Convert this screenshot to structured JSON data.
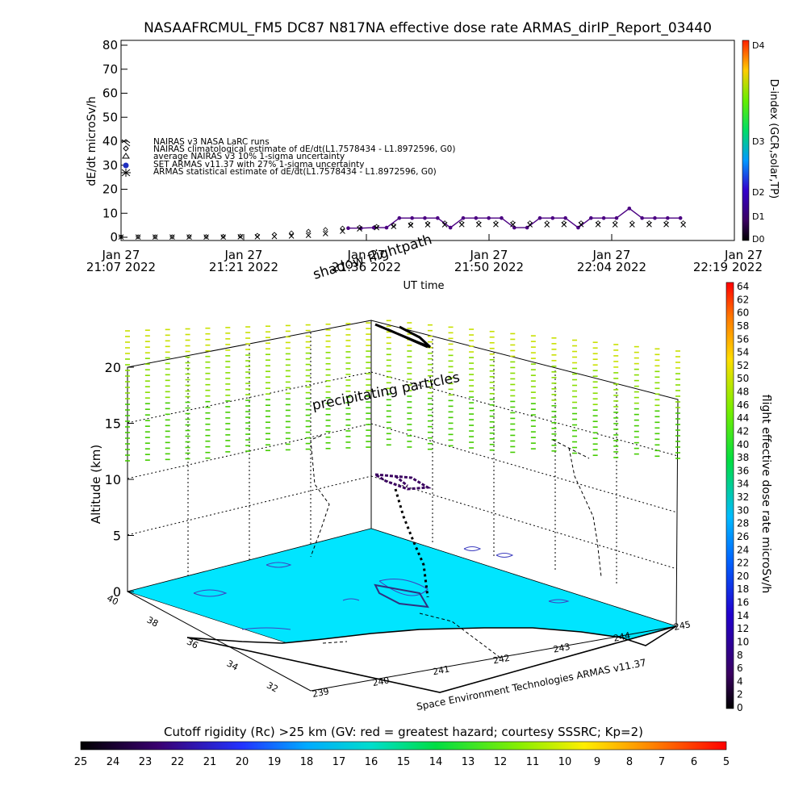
{
  "title": "NASAAFRCMUL_FM5 DC87 N817NA effective dose rate ARMAS_dirIP_Report_03440",
  "top_chart": {
    "ylabel": "dE/dt microSv/h",
    "xlabel": "UT time",
    "right_label": "D-index (GCR,solar,TP)",
    "y_ticks": [
      0,
      10,
      20,
      30,
      40,
      50,
      60,
      70,
      80
    ],
    "d_ticks": [
      "D0",
      "D1",
      "D2",
      "D3",
      "D4"
    ],
    "x_ticks": [
      {
        "line1": "Jan 27",
        "line2": "21:07 2022"
      },
      {
        "line1": "Jan 27",
        "line2": "21:21 2022"
      },
      {
        "line1": "Jan 27",
        "line2": "21:36 2022"
      },
      {
        "line1": "Jan 27",
        "line2": "21:50 2022"
      },
      {
        "line1": "Jan 27",
        "line2": "22:04 2022"
      },
      {
        "line1": "Jan 27",
        "line2": "22:19 2022"
      }
    ],
    "legend": [
      "NAIRAS v3 NASA LaRC runs",
      "NAIRAS climatological estimate of dE/dt(L1.7578434 - L1.8972596, G0)",
      "average NAIRAS v3 10% 1-sigma uncertainty",
      "SET ARMAS v11.37 with 27% 1-sigma uncertainty",
      "ARMAS statistical estimate of dE/dt(L1.7578434 - L1.8972596, G0)"
    ]
  },
  "chart_data": [
    {
      "type": "line",
      "title": "NASAAFRCMUL_FM5 DC87 N817NA effective dose rate ARMAS_dirIP_Report_03440",
      "xlabel": "UT time",
      "ylabel": "dE/dt microSv/h",
      "ylim": [
        0,
        80
      ],
      "series": [
        {
          "name": "SET ARMAS v11.37 with 27% 1-sigma uncertainty",
          "color": "#4b0082",
          "x": [
            "21:33:40",
            "21:35:10",
            "21:36:40",
            "21:38:10",
            "21:39:40",
            "21:41:10",
            "21:42:40",
            "21:44:10",
            "21:45:40",
            "21:47:10",
            "21:48:40",
            "21:50:10",
            "21:51:40",
            "21:53:10",
            "21:54:40",
            "21:56:10",
            "21:57:40",
            "21:59:10",
            "22:00:40",
            "22:02:10",
            "22:03:40",
            "22:05:10",
            "22:06:40",
            "22:08:10",
            "22:09:40",
            "22:11:10",
            "22:12:40"
          ],
          "values": [
            3.8,
            3.8,
            4.0,
            4.0,
            8.0,
            8.0,
            8.0,
            8.0,
            4.0,
            8.0,
            8.0,
            8.0,
            8.0,
            4.0,
            4.0,
            8.0,
            8.0,
            8.0,
            4.0,
            8.0,
            8.0,
            8.0,
            12.0,
            8.0,
            8.0,
            8.0,
            8.0
          ]
        },
        {
          "name": "ARMAS statistical estimate of dE/dt(L1.7578434 - L1.8972596, G0)",
          "color": "#000000",
          "x": [
            "21:07",
            "21:09",
            "21:11",
            "21:13",
            "21:15",
            "21:17",
            "21:19",
            "21:21",
            "21:23",
            "21:25",
            "21:27",
            "21:29",
            "21:31",
            "21:33",
            "21:35",
            "21:37",
            "21:39",
            "21:41",
            "21:43",
            "21:45",
            "21:47",
            "21:49",
            "21:51",
            "21:53",
            "21:55",
            "21:57",
            "21:59",
            "22:01",
            "22:03",
            "22:05",
            "22:07",
            "22:09",
            "22:11",
            "22:13"
          ],
          "values": [
            0.1,
            0.1,
            0.1,
            0.1,
            0.1,
            0.1,
            0.1,
            0.2,
            0.2,
            0.3,
            0.5,
            0.8,
            1.5,
            2.5,
            3.5,
            4.0,
            4.5,
            5.0,
            5.2,
            5.2,
            5.3,
            5.3,
            5.3,
            5.3,
            5.2,
            5.2,
            5.3,
            5.3,
            5.3,
            5.2,
            5.2,
            5.3,
            5.3,
            5.2
          ]
        },
        {
          "name": "NAIRAS climatological estimate of dE/dt(L1.7578434 - L1.8972596, G0)",
          "color": "#000000",
          "x": [
            "21:07",
            "21:09",
            "21:11",
            "21:13",
            "21:15",
            "21:17",
            "21:19",
            "21:21",
            "21:23",
            "21:25",
            "21:27",
            "21:29",
            "21:31",
            "21:33",
            "21:35",
            "21:37",
            "21:39",
            "21:41",
            "21:43",
            "21:45",
            "21:47",
            "21:49",
            "21:51",
            "21:53",
            "21:55",
            "21:57",
            "21:59",
            "22:01",
            "22:03",
            "22:05",
            "22:07",
            "22:09",
            "22:11",
            "22:13"
          ],
          "values": [
            0.2,
            0.2,
            0.2,
            0.2,
            0.3,
            0.3,
            0.4,
            0.5,
            0.8,
            1.2,
            1.8,
            2.5,
            3.2,
            3.8,
            4.2,
            4.5,
            5.0,
            5.5,
            5.8,
            6.0,
            6.0,
            6.0,
            6.0,
            6.0,
            6.0,
            6.0,
            6.0,
            6.0,
            6.0,
            6.0,
            6.0,
            6.0,
            6.0,
            6.0
          ]
        }
      ]
    },
    {
      "type": "heatmap",
      "title": "",
      "xlabel": "",
      "ylabel": "Altitude (km)",
      "zlim": [
        0,
        20
      ],
      "z_ticks": [
        0,
        5,
        10,
        15,
        20
      ],
      "lat_ticks": [
        32,
        34,
        36,
        38,
        40
      ],
      "lon_ticks": [
        239,
        240,
        241,
        242,
        243,
        244,
        245
      ],
      "annotations": [
        "shadow flightpath",
        "precipitating particles"
      ],
      "credit": "Space Environment Technologies ARMAS v11.37"
    }
  ],
  "dose_colorbar": {
    "label": "flight effective dose rate microSv/h",
    "ticks": [
      0,
      2,
      4,
      6,
      8,
      10,
      12,
      14,
      16,
      18,
      20,
      22,
      24,
      26,
      28,
      30,
      32,
      34,
      36,
      38,
      40,
      42,
      44,
      46,
      48,
      50,
      52,
      54,
      56,
      58,
      60,
      62,
      64
    ]
  },
  "cutoff_colorbar": {
    "label": "Cutoff rigidity (Rc) >25 km (GV: red = greatest hazard; courtesy SSSRC; Kp=2)",
    "ticks": [
      25,
      24,
      23,
      22,
      21,
      20,
      19,
      18,
      17,
      16,
      15,
      14,
      13,
      12,
      11,
      10,
      9,
      8,
      7,
      6,
      5
    ]
  }
}
